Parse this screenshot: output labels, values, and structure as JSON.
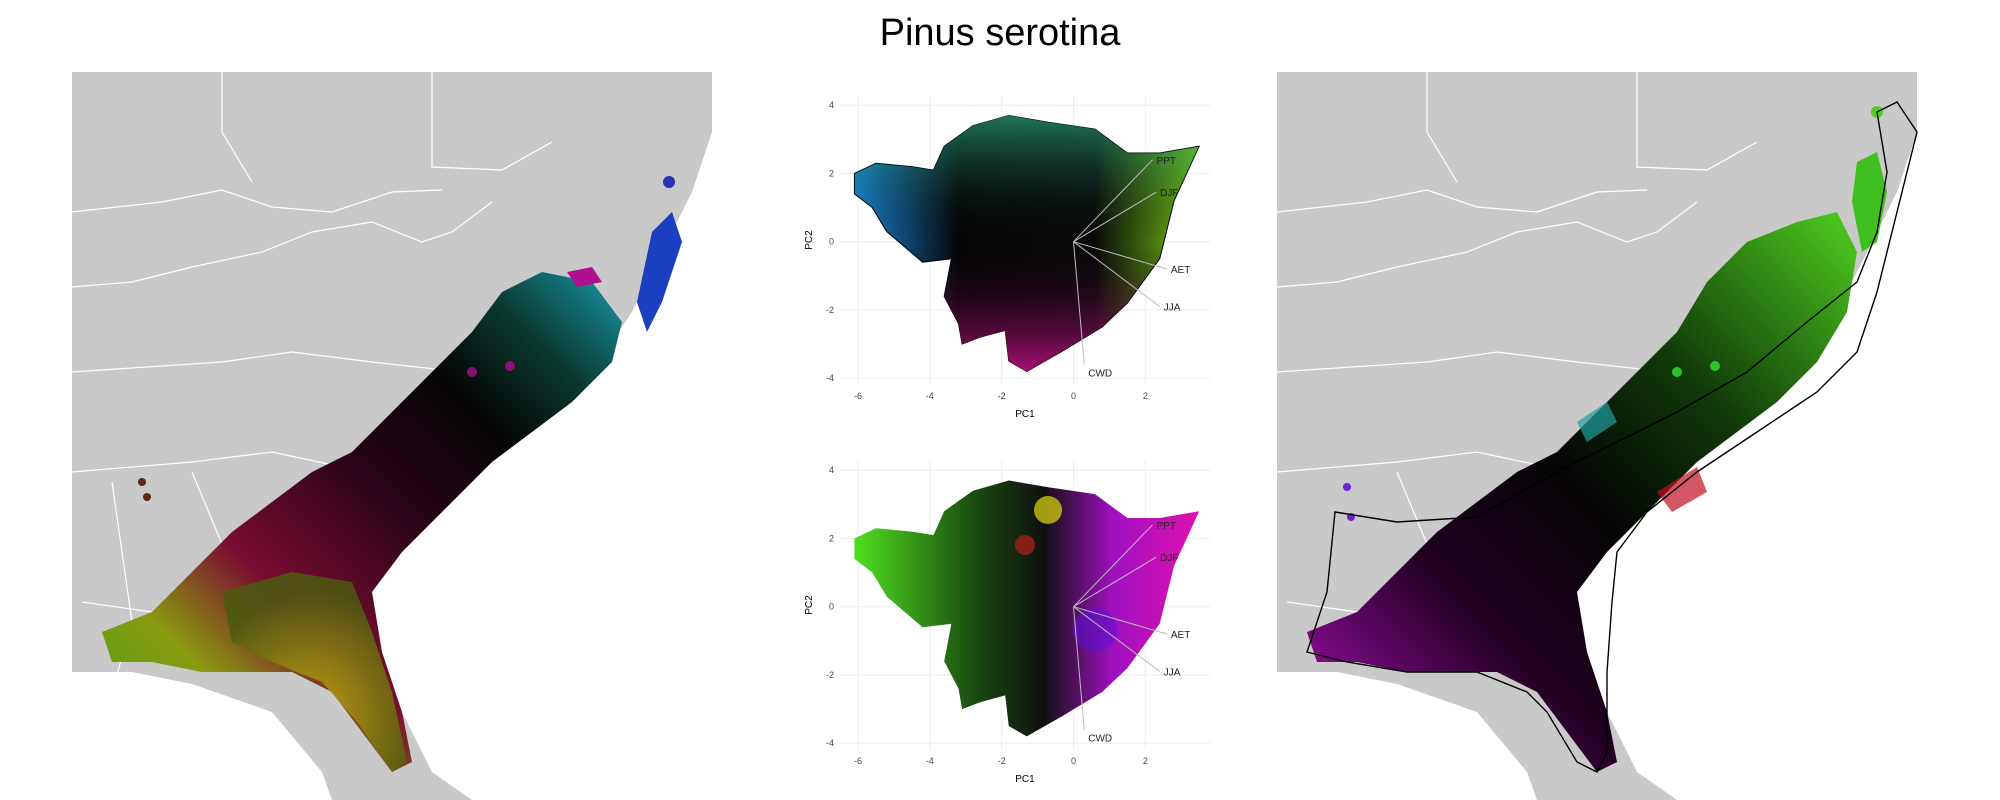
{
  "title": "Pinus serotina",
  "colors": {
    "land": "#c9c9c9",
    "border": "#ffffff",
    "grid": "#ebebeb"
  },
  "chart_data": [
    {
      "type": "scatter",
      "panel": "pca-top",
      "xlabel": "PC1",
      "ylabel": "PC2",
      "xlim": [
        -6.5,
        3.8
      ],
      "ylim": [
        -4.2,
        4.3
      ],
      "xticks": [
        -6,
        -4,
        -2,
        0,
        2
      ],
      "yticks": [
        -4,
        -2,
        0,
        2,
        4
      ],
      "grid": true,
      "vectors": [
        {
          "label": "PPT",
          "x": 2.2,
          "y": 2.4
        },
        {
          "label": "DJF",
          "x": 2.3,
          "y": 1.45
        },
        {
          "label": "AET",
          "x": 2.6,
          "y": -0.8
        },
        {
          "label": "JJA",
          "x": 2.4,
          "y": -1.9
        },
        {
          "label": "CWD",
          "x": 0.3,
          "y": -3.6
        }
      ]
    },
    {
      "type": "scatter",
      "panel": "pca-bottom",
      "xlabel": "PC1",
      "ylabel": "PC2",
      "xlim": [
        -6.5,
        3.8
      ],
      "ylim": [
        -4.2,
        4.3
      ],
      "xticks": [
        -6,
        -4,
        -2,
        0,
        2
      ],
      "yticks": [
        -4,
        -2,
        0,
        2,
        4
      ],
      "grid": true,
      "vectors": [
        {
          "label": "PPT",
          "x": 2.2,
          "y": 2.4
        },
        {
          "label": "DJF",
          "x": 2.3,
          "y": 1.45
        },
        {
          "label": "AET",
          "x": 2.6,
          "y": -0.8
        },
        {
          "label": "JJA",
          "x": 2.4,
          "y": -1.9
        },
        {
          "label": "CWD",
          "x": 0.3,
          "y": -3.6
        }
      ]
    }
  ]
}
